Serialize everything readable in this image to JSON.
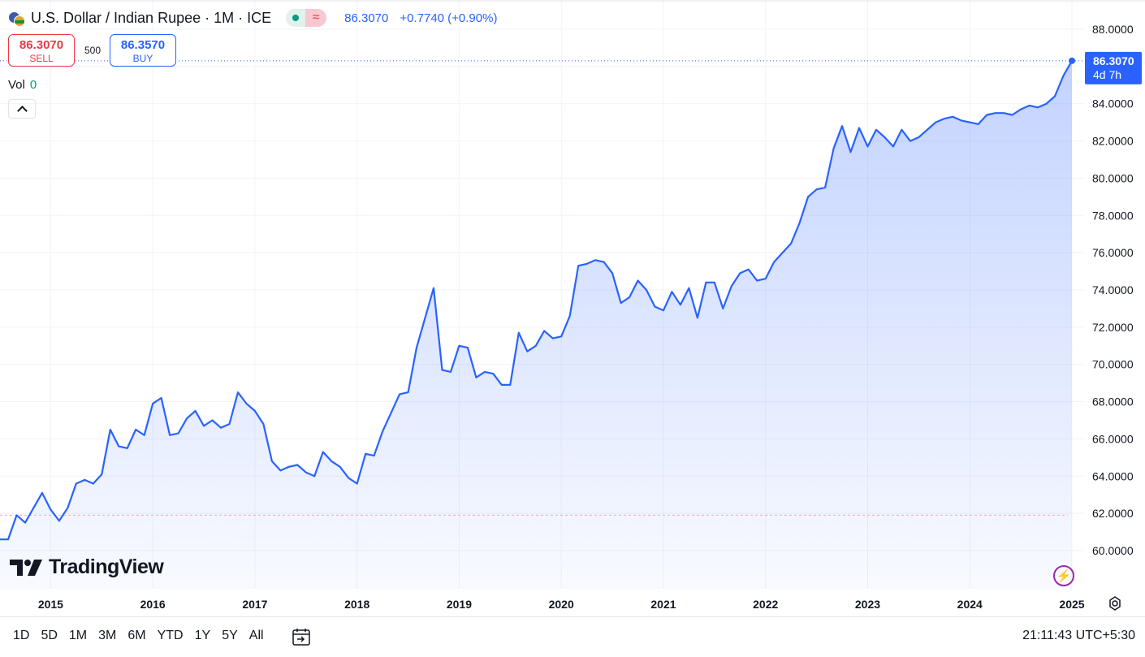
{
  "header": {
    "title": "U.S. Dollar / Indian Rupee · 1M · ICE",
    "last_price": "86.3070",
    "change": "+0.7740 (+0.90%)"
  },
  "trade": {
    "sell_price": "86.3070",
    "sell_label": "SELL",
    "spread": "500",
    "buy_price": "86.3570",
    "buy_label": "BUY"
  },
  "volume": {
    "label": "Vol",
    "value": "0"
  },
  "price_tag": {
    "price": "86.3070",
    "countdown": "4d 7h"
  },
  "brand": {
    "name": "TradingView"
  },
  "bottom_bar": {
    "ranges": [
      "1D",
      "5D",
      "1M",
      "3M",
      "6M",
      "YTD",
      "1Y",
      "5Y",
      "All"
    ],
    "clock": "21:11:43 UTC+5:30"
  },
  "colors": {
    "line": "#2962ff",
    "fill": "#2962ff",
    "buy": "#2962ff",
    "sell": "#f23645",
    "grid": "#f0f3fa",
    "axis_text": "#131722"
  },
  "chart_data": {
    "type": "area",
    "interval": "1M",
    "x_start": "2014-08",
    "ylim": [
      58.5,
      88.5
    ],
    "y_ticks": [
      "60.0000",
      "62.0000",
      "64.0000",
      "66.0000",
      "68.0000",
      "70.0000",
      "72.0000",
      "74.0000",
      "76.0000",
      "78.0000",
      "80.0000",
      "82.0000",
      "84.0000",
      "86.0000",
      "88.0000"
    ],
    "x_ticks": [
      "2015",
      "2016",
      "2017",
      "2018",
      "2019",
      "2020",
      "2021",
      "2022",
      "2023",
      "2024",
      "2025"
    ],
    "reference_line": 61.9,
    "grid": true,
    "values": [
      60.6,
      61.9,
      61.5,
      62.3,
      63.1,
      62.2,
      61.6,
      62.3,
      63.6,
      63.8,
      63.6,
      64.1,
      66.5,
      65.6,
      65.5,
      66.5,
      66.2,
      67.9,
      68.2,
      66.2,
      66.3,
      67.1,
      67.5,
      66.7,
      67.0,
      66.6,
      66.8,
      68.5,
      67.9,
      67.5,
      66.8,
      64.8,
      64.3,
      64.5,
      64.6,
      64.2,
      64.0,
      65.3,
      64.8,
      64.5,
      63.9,
      63.6,
      65.2,
      65.1,
      66.4,
      67.4,
      68.4,
      68.5,
      70.9,
      72.5,
      74.1,
      69.7,
      69.6,
      71.0,
      70.9,
      69.3,
      69.6,
      69.5,
      68.9,
      68.9,
      71.7,
      70.7,
      71.0,
      71.8,
      71.4,
      71.5,
      72.6,
      75.3,
      75.4,
      75.6,
      75.5,
      74.9,
      73.3,
      73.6,
      74.5,
      74.0,
      73.1,
      72.9,
      73.9,
      73.2,
      74.1,
      72.5,
      74.4,
      74.4,
      73.0,
      74.2,
      74.9,
      75.1,
      74.5,
      74.6,
      75.5,
      76.0,
      76.5,
      77.6,
      79.0,
      79.4,
      79.5,
      81.6,
      82.8,
      81.4,
      82.7,
      81.7,
      82.6,
      82.2,
      81.7,
      82.6,
      82.0,
      82.2,
      82.6,
      83.0,
      83.2,
      83.3,
      83.1,
      83.0,
      82.9,
      83.4,
      83.5,
      83.5,
      83.4,
      83.7,
      83.9,
      83.8,
      84.0,
      84.4,
      85.5,
      86.307
    ]
  }
}
